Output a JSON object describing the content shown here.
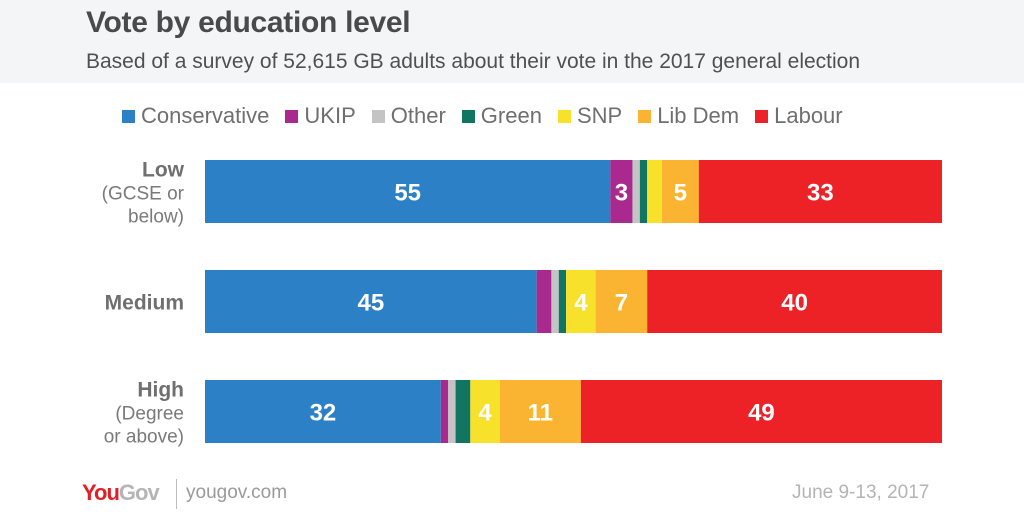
{
  "header": {
    "title": "Vote by education level",
    "subtitle": "Based of a survey of 52,615 GB adults about their vote in the 2017 general election"
  },
  "chart_data": {
    "type": "bar",
    "orientation": "horizontal",
    "stacked": true,
    "title": "Vote by education level",
    "subtitle": "Based of a survey of 52,615 GB adults about their vote in the 2017 general election",
    "xlabel": "",
    "ylabel": "",
    "xlim": [
      0,
      100
    ],
    "grid": false,
    "legend_position": "top",
    "categories": [
      {
        "label": "Low",
        "sublabel_lines": [
          "(GCSE or",
          "below)"
        ]
      },
      {
        "label": "Medium",
        "sublabel_lines": []
      },
      {
        "label": "High",
        "sublabel_lines": [
          "(Degree",
          "or above)"
        ]
      }
    ],
    "series": [
      {
        "name": "Conservative",
        "color": "#2b80c6",
        "values": [
          55,
          45,
          32
        ],
        "labels": [
          "55",
          "45",
          "32"
        ]
      },
      {
        "name": "UKIP",
        "color": "#a9298f",
        "values": [
          3,
          2,
          1
        ],
        "labels": [
          "3",
          "",
          ""
        ]
      },
      {
        "name": "Other",
        "color": "#c4c4c4",
        "values": [
          1,
          1,
          1
        ],
        "labels": [
          "",
          "",
          ""
        ]
      },
      {
        "name": "Green",
        "color": "#107561",
        "values": [
          1,
          1,
          2
        ],
        "labels": [
          "",
          "",
          ""
        ]
      },
      {
        "name": "SNP",
        "color": "#f7e12a",
        "values": [
          2,
          4,
          4
        ],
        "labels": [
          "",
          "4",
          "4"
        ]
      },
      {
        "name": "Lib Dem",
        "color": "#fbb431",
        "values": [
          5,
          7,
          11
        ],
        "labels": [
          "5",
          "7",
          "11"
        ]
      },
      {
        "name": "Labour",
        "color": "#ed2227",
        "values": [
          33,
          40,
          49
        ],
        "labels": [
          "33",
          "40",
          "49"
        ]
      }
    ]
  },
  "footer": {
    "logo_you": "You",
    "logo_gov": "Gov",
    "url": "yougov.com",
    "date": "June 9-13, 2017"
  }
}
